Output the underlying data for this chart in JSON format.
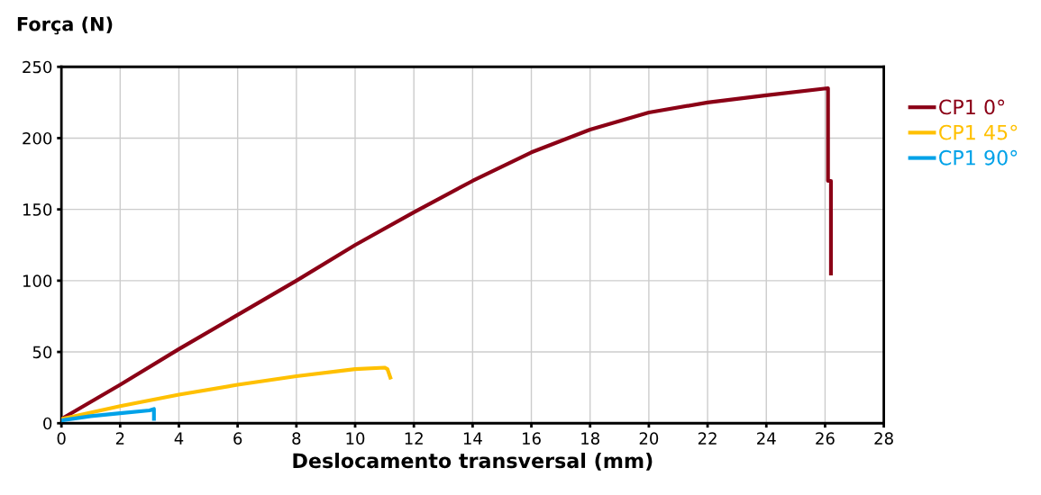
{
  "chart_data": {
    "type": "line",
    "ylabel": "Força (N)",
    "xlabel": "Deslocamento transversal (mm)",
    "xlim": [
      0,
      28
    ],
    "xticks": [
      0,
      2,
      4,
      6,
      8,
      10,
      12,
      14,
      16,
      18,
      20,
      22,
      24,
      26,
      28
    ],
    "ylim": [
      0,
      250
    ],
    "yticks": [
      0,
      50,
      100,
      150,
      200,
      250
    ],
    "grid": true,
    "legend": "top right",
    "marker": "none",
    "line_style": "solid",
    "series": [
      {
        "name": "CP1 0°",
        "color": "#8b0016",
        "x": [
          0,
          2,
          4,
          6,
          8,
          10,
          12,
          14,
          16,
          18,
          20,
          22,
          24,
          26.1,
          26.1,
          26.2,
          26.2
        ],
        "values": [
          3,
          27,
          52,
          76,
          100,
          125,
          148,
          170,
          190,
          206,
          218,
          225,
          230,
          235,
          170,
          170,
          105
        ]
      },
      {
        "name": "CP1 45°",
        "color": "#ffc000",
        "x": [
          0,
          2,
          4,
          6,
          8,
          10,
          11,
          11.1,
          11.2
        ],
        "values": [
          3,
          12,
          20,
          27,
          33,
          38,
          39,
          38,
          32
        ]
      },
      {
        "name": "CP1 90°",
        "color": "#00a2e8",
        "x": [
          0,
          1,
          2,
          3,
          3.15,
          3.15
        ],
        "values": [
          2,
          5,
          7,
          9,
          10,
          3
        ]
      }
    ]
  }
}
